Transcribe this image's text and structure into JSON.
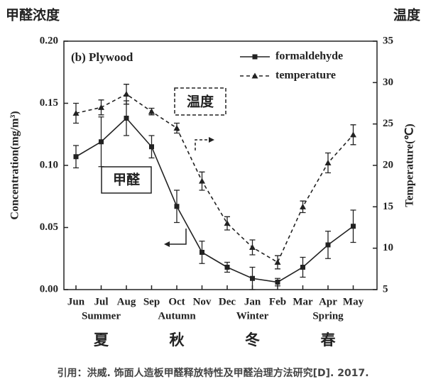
{
  "chart_data": {
    "type": "line",
    "panel_label": "(b) Plywood",
    "y_title_zh": "甲醛浓度",
    "y2_title_zh": "温度",
    "y_label": "Concentration(mg/m³)",
    "y2_label": "Temperature(℃)",
    "categories": [
      "Jun",
      "Jul",
      "Aug",
      "Sep",
      "Oct",
      "Nov",
      "Dec",
      "Jan",
      "Feb",
      "Mar",
      "Apr",
      "May"
    ],
    "seasons": [
      "Summer",
      "Autumn",
      "Winter",
      "Spring"
    ],
    "seasons_zh": [
      "夏",
      "秋",
      "冬",
      "春"
    ],
    "series": [
      {
        "name": "formaldehyde",
        "color": "#222222",
        "marker": "square",
        "dash": false,
        "values": [
          0.107,
          0.119,
          0.138,
          0.115,
          0.067,
          0.03,
          0.018,
          0.009,
          0.006,
          0.018,
          0.036,
          0.051
        ],
        "errors": [
          0.009,
          0.02,
          0.014,
          0.009,
          0.013,
          0.009,
          0.004,
          0.009,
          0.003,
          0.008,
          0.011,
          0.013
        ]
      },
      {
        "name": "temperature",
        "color": "#222222",
        "marker": "triangle",
        "dash": true,
        "axis": "y2",
        "values": [
          26.3,
          27.0,
          28.6,
          26.5,
          24.5,
          18.1,
          13.0,
          10.1,
          8.3,
          15.0,
          20.3,
          23.7
        ],
        "errors": [
          1.2,
          0.9,
          1.2,
          0.4,
          0.6,
          1.1,
          0.8,
          0.9,
          0.8,
          0.7,
          1.2,
          1.2
        ]
      }
    ],
    "ylim": [
      0,
      0.2
    ],
    "yticks": [
      {
        "value": 0,
        "label": "0.00"
      },
      0.05,
      {
        "value": 0.1,
        "label": "0.10"
      },
      0.15,
      {
        "value": 0.2,
        "label": "0.20"
      }
    ],
    "y2lim": [
      5,
      35
    ],
    "y2ticks": [
      5,
      10,
      15,
      20,
      25,
      30,
      35
    ],
    "annotations": [
      "温度",
      "甲醛"
    ],
    "source": "引用：洪威. 饰面人造板甲醛释放特性及甲醛治理方法研究[D]. 2017."
  }
}
